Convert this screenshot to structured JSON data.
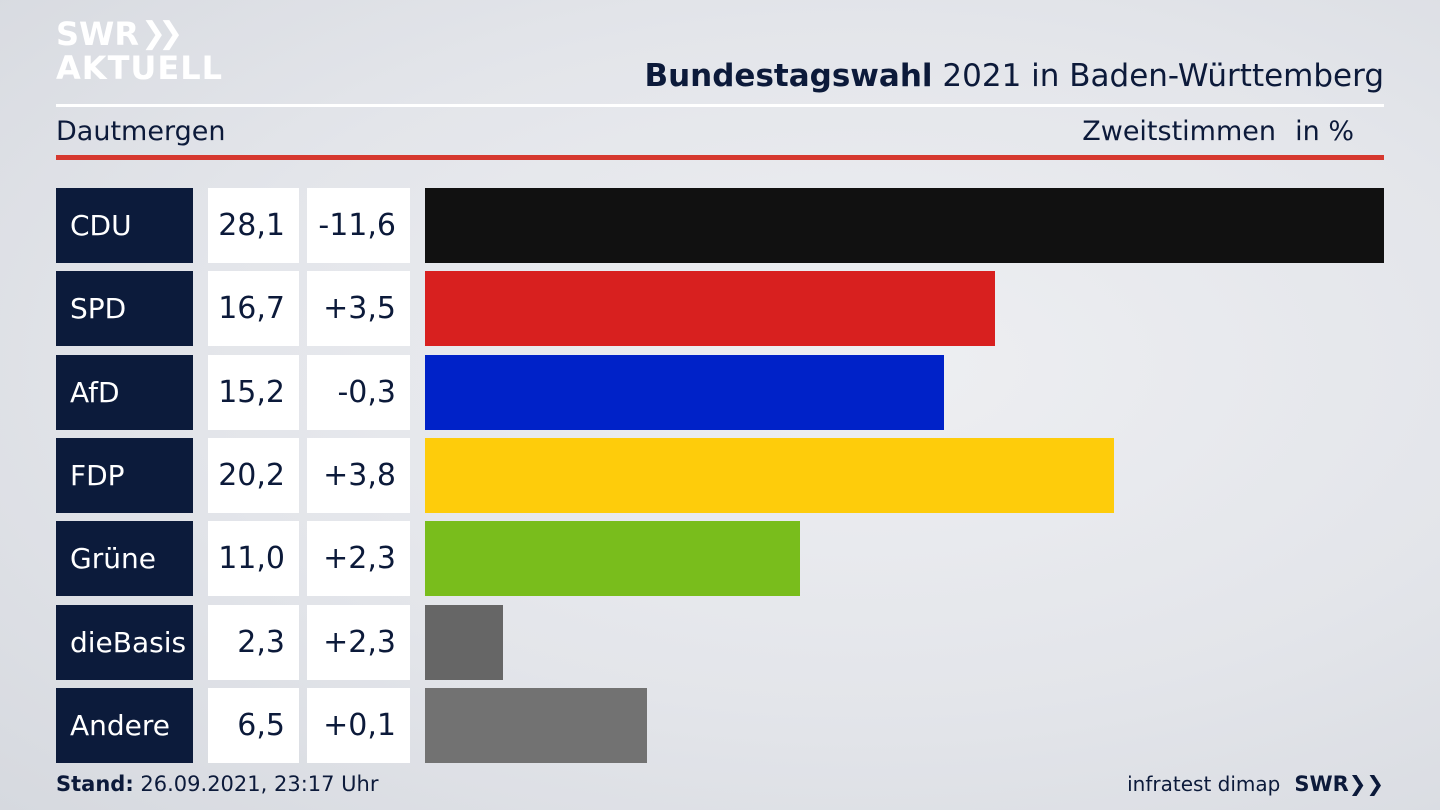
{
  "logo": {
    "line1": "SWR",
    "line2": "AKTUELL"
  },
  "header": {
    "title_bold": "Bundestagswahl",
    "title_rest": " 2021 in Baden-Württemberg",
    "region": "Dautmergen",
    "vote_type": "Zweitstimmen",
    "unit": "in %"
  },
  "chart_data": {
    "type": "bar",
    "orientation": "horizontal",
    "categories": [
      "CDU",
      "SPD",
      "AfD",
      "FDP",
      "Grüne",
      "dieBasis",
      "Andere"
    ],
    "series": [
      {
        "values": [
          28.1,
          16.7,
          15.2,
          20.2,
          11.0,
          2.3,
          6.5
        ]
      }
    ],
    "value_labels": [
      "28,1",
      "16,7",
      "15,2",
      "20,2",
      "11,0",
      "2,3",
      "6,5"
    ],
    "diff_labels": [
      "-11,6",
      "+3,5",
      "-0,3",
      "+3,8",
      "+2,3",
      "+2,3",
      "+0,1"
    ],
    "colors": [
      "#111111",
      "#d8201f",
      "#0022c8",
      "#fecc0b",
      "#79bd1c",
      "#666666",
      "#727272"
    ],
    "xlim": [
      0,
      28.1
    ],
    "grid": false
  },
  "footer": {
    "stand_label": "Stand:",
    "stand_value": " 26.09.2021, 23:17 Uhr",
    "source": "infratest dimap",
    "brand": "SWR"
  }
}
